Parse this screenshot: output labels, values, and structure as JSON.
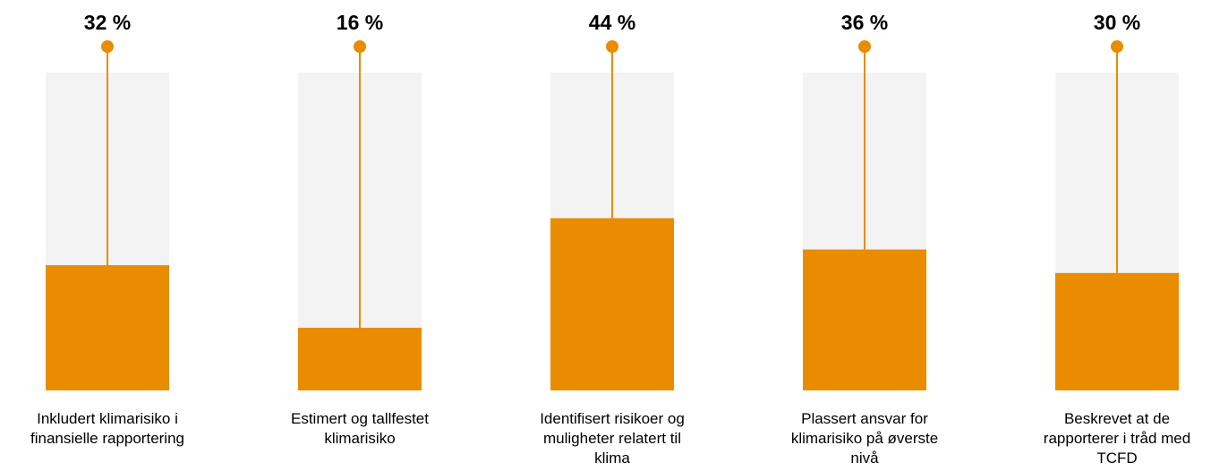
{
  "chart_data": {
    "type": "bar",
    "title": "",
    "xlabel": "",
    "ylabel": "",
    "ylim": [
      0,
      100
    ],
    "unit": "%",
    "categories": [
      [
        "Inkludert klimarisiko i",
        "finansielle rapportering"
      ],
      [
        "Estimert og tallfestet",
        "klimarisiko"
      ],
      [
        "Identifisert risikoer og",
        "muligheter relatert til",
        "klima"
      ],
      [
        "Plassert ansvar for",
        "klimarisiko på øverste",
        "nivå"
      ],
      [
        "Beskrevet at de",
        "rapporterer i tråd med",
        "TCFD"
      ]
    ],
    "values": [
      32,
      16,
      44,
      36,
      30
    ],
    "value_labels": [
      "32 %",
      "16 %",
      "44 %",
      "36 %",
      "30 %"
    ],
    "colors": {
      "bar": "#E98C00",
      "track": "#F3F3F3",
      "stem": "#E98C00"
    },
    "grid": false,
    "legend": "none"
  }
}
